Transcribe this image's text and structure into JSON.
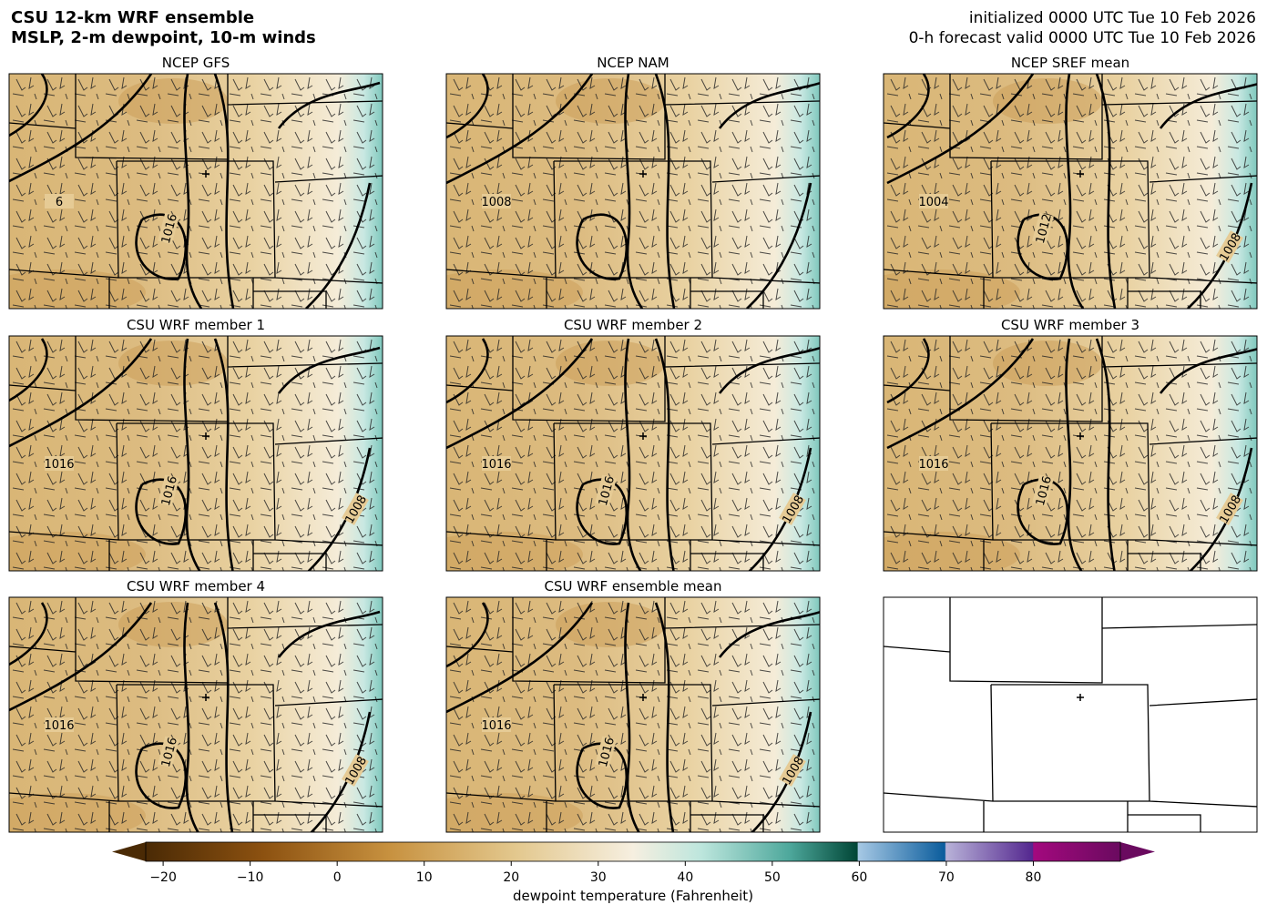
{
  "header": {
    "title_lines": [
      "CSU 12-km WRF ensemble",
      "MSLP, 2-m dewpoint, 10-m winds"
    ],
    "init": "initialized 0000 UTC Tue 10 Feb 2026",
    "valid": "0-h forecast valid 0000 UTC Tue 10 Feb 2026"
  },
  "panels": [
    {
      "title": "NCEP GFS",
      "contour_labels": [
        "6",
        "1016"
      ]
    },
    {
      "title": "NCEP NAM",
      "contour_labels": [
        "1008"
      ]
    },
    {
      "title": "NCEP SREF mean",
      "contour_labels": [
        "1004",
        "1012",
        "1008"
      ]
    },
    {
      "title": "CSU WRF member 1",
      "contour_labels": [
        "1016",
        "1016",
        "1008"
      ]
    },
    {
      "title": "CSU WRF member 2",
      "contour_labels": [
        "1016",
        "1016",
        "1008"
      ]
    },
    {
      "title": "CSU WRF member 3",
      "contour_labels": [
        "1016",
        "1016",
        "1008"
      ]
    },
    {
      "title": "CSU WRF member 4",
      "contour_labels": [
        "1016",
        "1016",
        "1008"
      ]
    },
    {
      "title": "CSU WRF ensemble mean",
      "contour_labels": [
        "1016",
        "1016",
        "1008"
      ]
    }
  ],
  "colorbar": {
    "label": "dewpoint temperature (Fahrenheit)",
    "xlim": [
      -22,
      90
    ],
    "xticks": [
      {
        "value": -20,
        "label": "−20"
      },
      {
        "value": -10,
        "label": "−10"
      },
      0,
      10,
      20,
      30,
      40,
      50,
      60,
      70,
      80
    ]
  }
}
